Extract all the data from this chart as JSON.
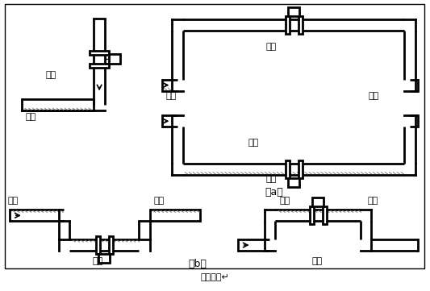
{
  "title": "图（四）↵",
  "label_a": "（a）",
  "label_b": "（b）",
  "text_correct": "正确",
  "text_wrong": "错误",
  "text_liquid": "液体",
  "text_bubble": "气泡",
  "bg_color": "#ffffff",
  "line_color": "#000000",
  "lw": 2.0,
  "pw": 7,
  "font_size": 8
}
